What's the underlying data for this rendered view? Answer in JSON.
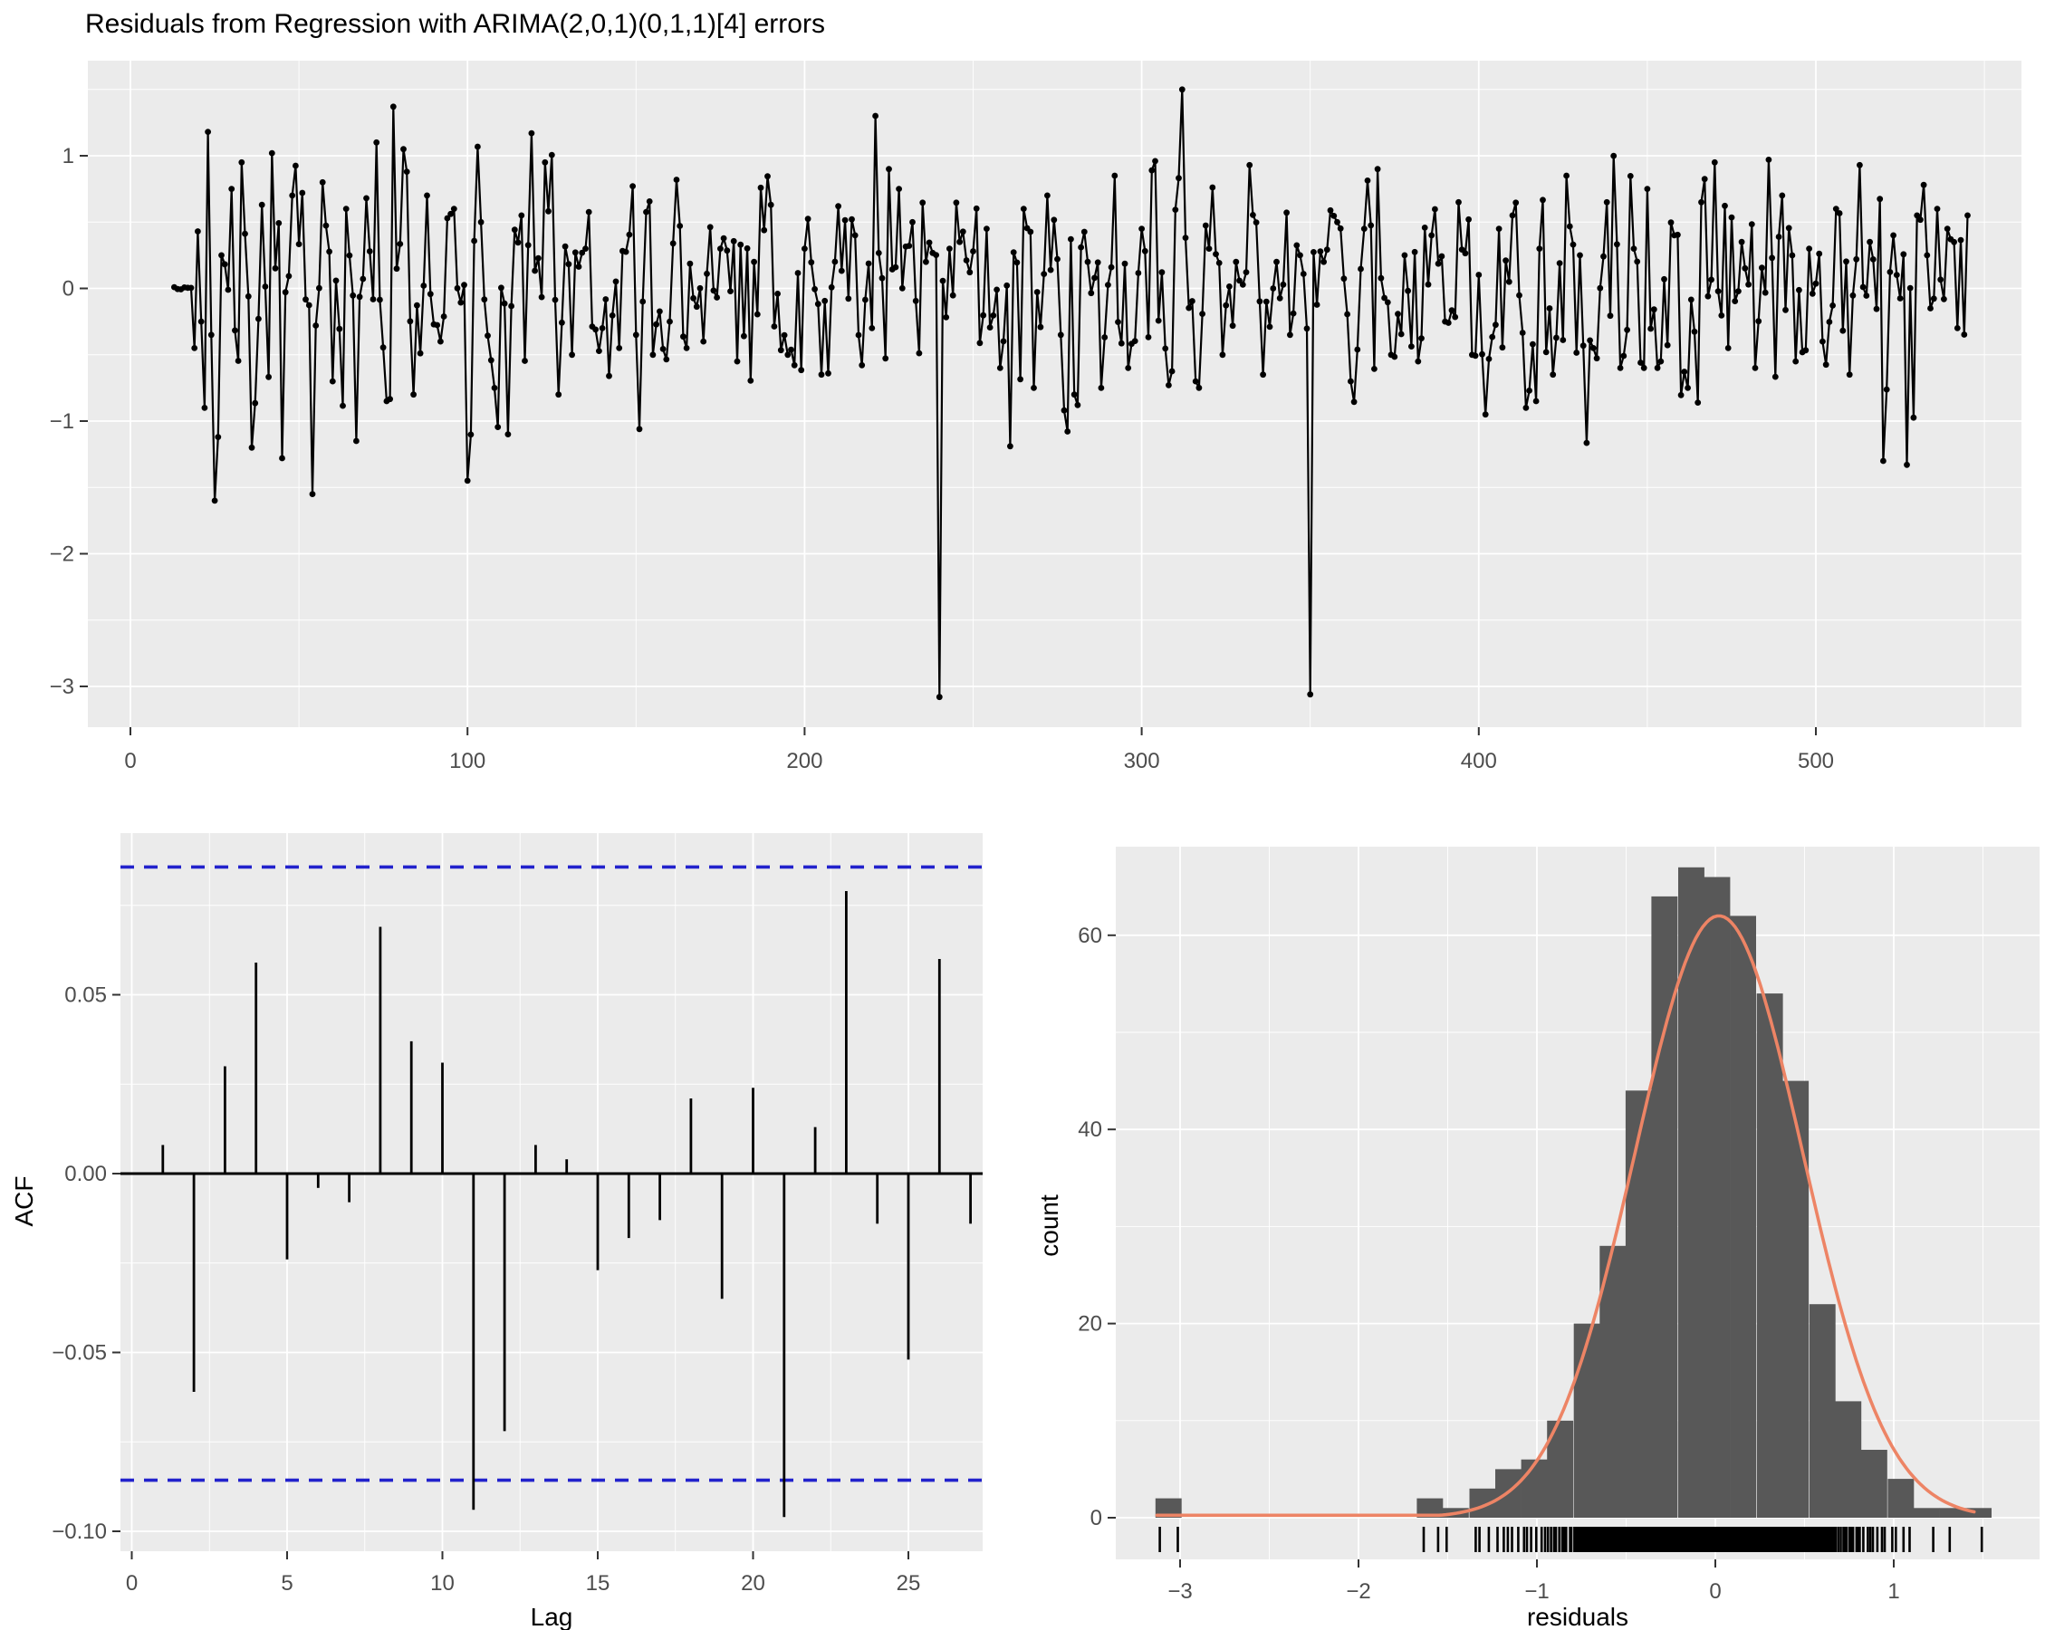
{
  "title": "Residuals from Regression with ARIMA(2,0,1)(0,1,1)[4] errors",
  "colors": {
    "background": "#ffffff",
    "panel": "#ebebeb",
    "grid_major": "#ffffff",
    "grid_minor": "#f7f7f7",
    "series": "#000000",
    "hist_bar": "#585858",
    "normal_curve": "#ed8465",
    "conf_line": "#2222cc",
    "tick_text": "#4d4d4d",
    "axis_title": "#000000",
    "tick_mark": "#333333"
  },
  "chart_data": [
    {
      "id": "residual_time_series",
      "type": "line",
      "title": "",
      "xlabel": "",
      "ylabel": "",
      "x_ticks": [
        0,
        100,
        200,
        300,
        400,
        500
      ],
      "x_tick_labels": [
        "0",
        "100",
        "200",
        "300",
        "400",
        "500"
      ],
      "x_minor_ticks": [
        50,
        150,
        250,
        350,
        450,
        550
      ],
      "y_ticks": [
        1,
        0,
        -1,
        -2,
        -3
      ],
      "y_tick_labels": [
        "1",
        "0",
        "−1",
        "−2",
        "−3"
      ],
      "y_minor_ticks": [
        1.5,
        0.5,
        -0.5,
        -1.5,
        -2.5
      ],
      "xlim": [
        -13,
        562
      ],
      "ylim": [
        -3.31,
        1.72
      ],
      "x_start": 13,
      "x_end": 545,
      "marker": "point",
      "noise_model": {
        "seed": 20240,
        "sd": 0.4,
        "ar1": 0.3,
        "clamp_low": -1.45,
        "clamp_high": 1.3
      },
      "leading_zeros_until": 18,
      "anchor_points": [
        [
          19,
          -0.45
        ],
        [
          20,
          0.43
        ],
        [
          21,
          -0.25
        ],
        [
          22,
          -0.9
        ],
        [
          23,
          1.18
        ],
        [
          24,
          -0.35
        ],
        [
          25,
          -1.6
        ],
        [
          26,
          -1.12
        ],
        [
          27,
          0.25
        ],
        [
          30,
          0.75
        ],
        [
          33,
          0.95
        ],
        [
          36,
          -1.2
        ],
        [
          39,
          0.63
        ],
        [
          42,
          1.02
        ],
        [
          45,
          -1.28
        ],
        [
          48,
          0.7
        ],
        [
          51,
          0.72
        ],
        [
          54,
          -1.55
        ],
        [
          57,
          0.8
        ],
        [
          60,
          -0.7
        ],
        [
          64,
          0.6
        ],
        [
          67,
          -1.15
        ],
        [
          70,
          0.68
        ],
        [
          73,
          1.1
        ],
        [
          76,
          -0.85
        ],
        [
          78,
          1.37
        ],
        [
          81,
          1.05
        ],
        [
          84,
          -0.8
        ],
        [
          88,
          0.7
        ],
        [
          92,
          -0.4
        ],
        [
          96,
          0.6
        ],
        [
          100,
          -1.45
        ],
        [
          104,
          0.5
        ],
        [
          108,
          -0.75
        ],
        [
          112,
          -1.1
        ],
        [
          116,
          0.55
        ],
        [
          119,
          1.17
        ],
        [
          123,
          0.95
        ],
        [
          127,
          -0.8
        ],
        [
          131,
          -0.5
        ],
        [
          135,
          0.3
        ],
        [
          140,
          -0.3
        ],
        [
          145,
          -0.45
        ],
        [
          150,
          -0.35
        ],
        [
          155,
          -0.5
        ],
        [
          160,
          -0.25
        ],
        [
          165,
          -0.45
        ],
        [
          170,
          -0.4
        ],
        [
          175,
          0.3
        ],
        [
          180,
          -0.55
        ],
        [
          185,
          0.2
        ],
        [
          190,
          0.63
        ],
        [
          195,
          -0.5
        ],
        [
          200,
          0.3
        ],
        [
          205,
          -0.65
        ],
        [
          210,
          0.62
        ],
        [
          215,
          0.4
        ],
        [
          220,
          -0.3
        ],
        [
          225,
          0.9
        ],
        [
          228,
          0.75
        ],
        [
          232,
          0.5
        ],
        [
          236,
          0.2
        ],
        [
          240,
          -3.08
        ],
        [
          243,
          0.3
        ],
        [
          246,
          0.35
        ],
        [
          250,
          0.28
        ],
        [
          254,
          0.45
        ],
        [
          258,
          -0.6
        ],
        [
          261,
          -1.19
        ],
        [
          265,
          0.6
        ],
        [
          268,
          -0.75
        ],
        [
          272,
          0.7
        ],
        [
          276,
          -0.35
        ],
        [
          280,
          -0.8
        ],
        [
          284,
          0.2
        ],
        [
          288,
          -0.75
        ],
        [
          292,
          0.85
        ],
        [
          296,
          -0.6
        ],
        [
          300,
          0.45
        ],
        [
          304,
          0.96
        ],
        [
          308,
          -0.73
        ],
        [
          312,
          1.5
        ],
        [
          316,
          -0.7
        ],
        [
          320,
          0.3
        ],
        [
          324,
          -0.5
        ],
        [
          328,
          0.2
        ],
        [
          332,
          0.93
        ],
        [
          336,
          -0.65
        ],
        [
          340,
          0.2
        ],
        [
          344,
          -0.35
        ],
        [
          347,
          0.25
        ],
        [
          350,
          -3.06
        ],
        [
          354,
          0.2
        ],
        [
          358,
          0.5
        ],
        [
          362,
          -0.7
        ],
        [
          366,
          0.45
        ],
        [
          370,
          0.9
        ],
        [
          374,
          -0.5
        ],
        [
          378,
          0.25
        ],
        [
          382,
          -0.55
        ],
        [
          386,
          0.4
        ],
        [
          390,
          -0.25
        ],
        [
          394,
          0.65
        ],
        [
          398,
          -0.5
        ],
        [
          402,
          -0.95
        ],
        [
          406,
          0.45
        ],
        [
          410,
          0.55
        ],
        [
          414,
          -0.9
        ],
        [
          418,
          0.3
        ],
        [
          422,
          -0.65
        ],
        [
          426,
          0.85
        ],
        [
          430,
          0.25
        ],
        [
          434,
          -0.45
        ],
        [
          438,
          0.65
        ],
        [
          442,
          -0.6
        ],
        [
          446,
          0.3
        ],
        [
          450,
          0.75
        ],
        [
          454,
          -0.55
        ],
        [
          458,
          0.4
        ],
        [
          462,
          -0.75
        ],
        [
          466,
          0.65
        ],
        [
          470,
          0.95
        ],
        [
          474,
          -0.45
        ],
        [
          478,
          0.35
        ],
        [
          482,
          -0.6
        ],
        [
          486,
          0.97
        ],
        [
          490,
          0.7
        ],
        [
          494,
          -0.55
        ],
        [
          498,
          0.3
        ],
        [
          502,
          -0.4
        ],
        [
          506,
          0.6
        ],
        [
          510,
          -0.65
        ],
        [
          513,
          0.93
        ],
        [
          516,
          0.35
        ],
        [
          520,
          -1.3
        ],
        [
          523,
          0.4
        ],
        [
          527,
          -1.33
        ],
        [
          530,
          0.55
        ],
        [
          533,
          0.25
        ],
        [
          536,
          0.6
        ],
        [
          539,
          0.45
        ],
        [
          542,
          -0.3
        ],
        [
          545,
          0.55
        ]
      ]
    },
    {
      "id": "acf",
      "type": "bar",
      "title": "",
      "xlabel": "Lag",
      "ylabel": "ACF",
      "x_ticks": [
        0,
        5,
        10,
        15,
        20,
        25
      ],
      "x_tick_labels": [
        "0",
        "5",
        "10",
        "15",
        "20",
        "25"
      ],
      "x_minor_ticks": [
        2.5,
        7.5,
        12.5,
        17.5,
        22.5,
        27.5
      ],
      "y_ticks": [
        0.05,
        0.0,
        -0.05,
        -0.1
      ],
      "y_tick_labels": [
        "0.05",
        "0.00",
        "−0.05",
        "−0.10"
      ],
      "y_minor_ticks": [
        0.075,
        0.025,
        -0.025,
        -0.075
      ],
      "xlim": [
        -0.4,
        27.4
      ],
      "ylim": [
        -0.107,
        0.095
      ],
      "confidence_limit": 0.0857,
      "lags": [
        1,
        2,
        3,
        4,
        5,
        6,
        7,
        8,
        9,
        10,
        11,
        12,
        13,
        14,
        15,
        16,
        17,
        18,
        19,
        20,
        21,
        22,
        23,
        24,
        25,
        26,
        27
      ],
      "values": [
        0.008,
        -0.061,
        0.03,
        0.059,
        -0.024,
        -0.004,
        -0.008,
        0.069,
        0.037,
        0.031,
        -0.094,
        -0.072,
        0.008,
        0.004,
        -0.027,
        -0.018,
        -0.013,
        0.021,
        -0.035,
        0.024,
        -0.096,
        0.013,
        0.079,
        -0.014,
        -0.052,
        0.06,
        -0.014
      ]
    },
    {
      "id": "residual_histogram",
      "type": "histogram",
      "title": "",
      "xlabel": "residuals",
      "ylabel": "count",
      "x_ticks": [
        -3,
        -2,
        -1,
        0,
        1
      ],
      "x_tick_labels": [
        "−3",
        "−2",
        "−1",
        "0",
        "1"
      ],
      "x_minor_ticks": [
        -2.5,
        -1.5,
        -0.5,
        0.5,
        1.5
      ],
      "y_ticks": [
        0,
        20,
        40,
        60
      ],
      "y_tick_labels": [
        "0",
        "20",
        "40",
        "60"
      ],
      "y_minor_ticks": [
        10,
        30,
        50
      ],
      "xlim": [
        -3.36,
        1.82
      ],
      "ylim": [
        0,
        69
      ],
      "bin_width": 0.1465,
      "bins": [
        {
          "center": -3.065,
          "count": 2
        },
        {
          "center": -1.6,
          "count": 2
        },
        {
          "center": -1.455,
          "count": 1
        },
        {
          "center": -1.305,
          "count": 3
        },
        {
          "center": -1.16,
          "count": 5
        },
        {
          "center": -1.015,
          "count": 6
        },
        {
          "center": -0.87,
          "count": 10
        },
        {
          "center": -0.72,
          "count": 20
        },
        {
          "center": -0.575,
          "count": 28
        },
        {
          "center": -0.43,
          "count": 44
        },
        {
          "center": -0.285,
          "count": 64
        },
        {
          "center": -0.135,
          "count": 67
        },
        {
          "center": 0.01,
          "count": 66
        },
        {
          "center": 0.155,
          "count": 62
        },
        {
          "center": 0.305,
          "count": 54
        },
        {
          "center": 0.45,
          "count": 45
        },
        {
          "center": 0.6,
          "count": 22
        },
        {
          "center": 0.745,
          "count": 12
        },
        {
          "center": 0.89,
          "count": 7
        },
        {
          "center": 1.04,
          "count": 4
        },
        {
          "center": 1.185,
          "count": 1
        },
        {
          "center": 1.33,
          "count": 1
        },
        {
          "center": 1.475,
          "count": 1
        }
      ],
      "normal_curve": {
        "mean": 0.02,
        "sd": 0.47,
        "peak": 62,
        "x_from": -3.13,
        "x_to": 1.46
      },
      "rug": {
        "seed": 99,
        "present": true
      }
    }
  ]
}
